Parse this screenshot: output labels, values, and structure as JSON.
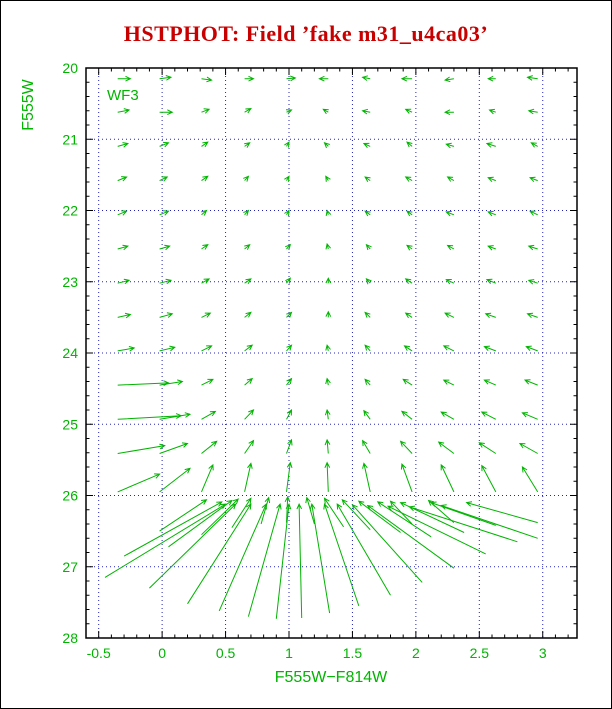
{
  "title": "HSTPHOT: Field ’fake m31_u4ca03’",
  "camera_label": "WF3",
  "colors": {
    "title_red": "#c80000",
    "data_green": "#00b400",
    "grid_blue": "#2222bb",
    "frame_black": "#000000",
    "background": "#ffffff"
  },
  "chart_data": {
    "type": "scatter",
    "style": "vector-field-arrows (photometric bias quiver plot)",
    "title": "HSTPHOT: Field ’fake m31_u4ca03’",
    "xlabel": "F555W−F814W",
    "ylabel": "F555W",
    "xlim": [
      -0.6,
      3.27
    ],
    "ylim": [
      20,
      28
    ],
    "y_axis_direction": "magnitude increases downward",
    "grid": "dotted blue lines at every major tick",
    "legend": "none",
    "xticks": [
      {
        "v": -0.5,
        "label": "-0.5"
      },
      {
        "v": 0,
        "label": "0"
      },
      {
        "v": 0.5,
        "label": "0.5"
      },
      {
        "v": 1,
        "label": "1"
      },
      {
        "v": 1.5,
        "label": "1.5"
      },
      {
        "v": 2,
        "label": "2"
      },
      {
        "v": 2.5,
        "label": "2.5"
      },
      {
        "v": 3,
        "label": "3"
      }
    ],
    "yticks": [
      {
        "v": 20,
        "label": "20"
      },
      {
        "v": 21,
        "label": "21"
      },
      {
        "v": 22,
        "label": "22"
      },
      {
        "v": 23,
        "label": "23"
      },
      {
        "v": 24,
        "label": "24"
      },
      {
        "v": 25,
        "label": "25"
      },
      {
        "v": 26,
        "label": "26"
      },
      {
        "v": 27,
        "label": "27"
      },
      {
        "v": 28,
        "label": "28"
      }
    ],
    "arrows": [
      [
        -0.35,
        20.15,
        -0.25,
        20.15
      ],
      [
        -0.02,
        20.15,
        0.07,
        20.13
      ],
      [
        0.31,
        20.15,
        0.39,
        20.17
      ],
      [
        0.65,
        20.15,
        0.72,
        20.15
      ],
      [
        0.98,
        20.15,
        1.05,
        20.14
      ],
      [
        1.31,
        20.15,
        1.24,
        20.15
      ],
      [
        1.64,
        20.15,
        1.58,
        20.13
      ],
      [
        1.97,
        20.15,
        1.89,
        20.15
      ],
      [
        2.3,
        20.15,
        2.23,
        20.17
      ],
      [
        2.63,
        20.15,
        2.57,
        20.15
      ],
      [
        2.96,
        20.15,
        2.88,
        20.13
      ],
      [
        -0.35,
        20.62,
        -0.26,
        20.59
      ],
      [
        -0.02,
        20.62,
        0.08,
        20.62
      ],
      [
        0.31,
        20.62,
        0.37,
        20.58
      ],
      [
        0.65,
        20.62,
        0.7,
        20.57
      ],
      [
        0.98,
        20.62,
        1.02,
        20.59
      ],
      [
        1.31,
        20.62,
        1.27,
        20.58
      ],
      [
        1.64,
        20.62,
        1.58,
        20.6
      ],
      [
        1.97,
        20.62,
        1.92,
        20.58
      ],
      [
        2.3,
        20.62,
        2.23,
        20.62
      ],
      [
        2.63,
        20.62,
        2.58,
        20.59
      ],
      [
        2.96,
        20.62,
        2.89,
        20.6
      ],
      [
        -0.35,
        21.1,
        -0.27,
        21.06
      ],
      [
        -0.02,
        21.1,
        0.05,
        21.05
      ],
      [
        0.31,
        21.1,
        0.36,
        21.04
      ],
      [
        0.65,
        21.1,
        0.69,
        21.05
      ],
      [
        0.98,
        21.1,
        1.0,
        21.04
      ],
      [
        1.31,
        21.1,
        1.28,
        21.05
      ],
      [
        1.64,
        21.1,
        1.59,
        21.06
      ],
      [
        1.97,
        21.1,
        1.93,
        21.04
      ],
      [
        2.3,
        21.1,
        2.24,
        21.07
      ],
      [
        2.63,
        21.1,
        2.56,
        21.06
      ],
      [
        2.96,
        21.1,
        2.91,
        21.05
      ],
      [
        -0.35,
        21.58,
        -0.28,
        21.53
      ],
      [
        -0.02,
        21.58,
        0.04,
        21.53
      ],
      [
        0.31,
        21.58,
        0.36,
        21.52
      ],
      [
        0.65,
        21.58,
        0.68,
        21.52
      ],
      [
        0.98,
        21.58,
        1.0,
        21.52
      ],
      [
        1.31,
        21.58,
        1.29,
        21.52
      ],
      [
        1.64,
        21.58,
        1.6,
        21.53
      ],
      [
        1.97,
        21.58,
        1.92,
        21.53
      ],
      [
        2.3,
        21.58,
        2.25,
        21.53
      ],
      [
        2.63,
        21.58,
        2.57,
        21.54
      ],
      [
        2.96,
        21.58,
        2.9,
        21.54
      ],
      [
        -0.35,
        22.06,
        -0.28,
        22.01
      ],
      [
        -0.02,
        22.06,
        0.05,
        22.01
      ],
      [
        0.31,
        22.06,
        0.35,
        22.0
      ],
      [
        0.65,
        22.06,
        0.68,
        22.0
      ],
      [
        0.98,
        22.06,
        1.0,
        22.0
      ],
      [
        1.31,
        22.06,
        1.3,
        22.0
      ],
      [
        1.64,
        22.06,
        1.6,
        22.01
      ],
      [
        1.97,
        22.06,
        1.93,
        22.01
      ],
      [
        2.3,
        22.06,
        2.24,
        22.02
      ],
      [
        2.63,
        22.06,
        2.57,
        22.02
      ],
      [
        2.96,
        22.06,
        2.9,
        22.01
      ],
      [
        -0.35,
        22.54,
        -0.27,
        22.5
      ],
      [
        -0.02,
        22.54,
        0.06,
        22.5
      ],
      [
        0.31,
        22.54,
        0.36,
        22.48
      ],
      [
        0.65,
        22.54,
        0.69,
        22.48
      ],
      [
        0.98,
        22.54,
        1.01,
        22.48
      ],
      [
        1.31,
        22.54,
        1.3,
        22.47
      ],
      [
        1.64,
        22.54,
        1.61,
        22.48
      ],
      [
        1.97,
        22.54,
        1.93,
        22.49
      ],
      [
        2.3,
        22.54,
        2.25,
        22.49
      ],
      [
        2.63,
        22.54,
        2.57,
        22.5
      ],
      [
        2.96,
        22.54,
        2.89,
        22.5
      ],
      [
        -0.35,
        23.02,
        -0.26,
        22.98
      ],
      [
        -0.02,
        23.02,
        0.07,
        22.98
      ],
      [
        0.31,
        23.02,
        0.37,
        22.96
      ],
      [
        0.65,
        23.02,
        0.7,
        22.96
      ],
      [
        0.98,
        23.02,
        1.01,
        22.95
      ],
      [
        1.31,
        23.02,
        1.31,
        22.95
      ],
      [
        1.64,
        23.02,
        1.61,
        22.96
      ],
      [
        1.97,
        23.02,
        1.92,
        22.96
      ],
      [
        2.3,
        23.02,
        2.24,
        22.97
      ],
      [
        2.63,
        23.02,
        2.56,
        22.97
      ],
      [
        2.96,
        23.02,
        2.89,
        22.98
      ],
      [
        -0.35,
        23.5,
        -0.25,
        23.46
      ],
      [
        -0.02,
        23.5,
        0.08,
        23.45
      ],
      [
        0.31,
        23.5,
        0.38,
        23.44
      ],
      [
        0.65,
        23.5,
        0.7,
        23.43
      ],
      [
        0.98,
        23.5,
        1.02,
        23.43
      ],
      [
        1.31,
        23.5,
        1.31,
        23.42
      ],
      [
        1.64,
        23.5,
        1.6,
        23.43
      ],
      [
        1.97,
        23.5,
        1.92,
        23.44
      ],
      [
        2.3,
        23.5,
        2.23,
        23.44
      ],
      [
        2.63,
        23.5,
        2.55,
        23.45
      ],
      [
        2.96,
        23.5,
        2.88,
        23.45
      ],
      [
        -0.35,
        23.97,
        -0.22,
        23.93
      ],
      [
        -0.02,
        23.97,
        0.1,
        23.92
      ],
      [
        0.31,
        23.97,
        0.39,
        23.9
      ],
      [
        0.65,
        23.97,
        0.71,
        23.89
      ],
      [
        0.98,
        23.97,
        1.02,
        23.89
      ],
      [
        1.31,
        23.97,
        1.3,
        23.89
      ],
      [
        1.64,
        23.97,
        1.6,
        23.89
      ],
      [
        1.97,
        23.97,
        1.91,
        23.9
      ],
      [
        2.3,
        23.97,
        2.22,
        23.9
      ],
      [
        2.63,
        23.97,
        2.54,
        23.91
      ],
      [
        2.96,
        23.97,
        2.87,
        23.91
      ],
      [
        -0.35,
        24.45,
        0.05,
        24.42
      ],
      [
        -0.02,
        24.45,
        0.16,
        24.4
      ],
      [
        0.31,
        24.45,
        0.4,
        24.37
      ],
      [
        0.65,
        24.45,
        0.71,
        24.36
      ],
      [
        0.98,
        24.45,
        1.02,
        24.36
      ],
      [
        1.31,
        24.45,
        1.3,
        24.36
      ],
      [
        1.64,
        24.45,
        1.6,
        24.37
      ],
      [
        1.97,
        24.45,
        1.9,
        24.37
      ],
      [
        2.3,
        24.45,
        2.22,
        24.38
      ],
      [
        2.63,
        24.45,
        2.54,
        24.38
      ],
      [
        2.96,
        24.45,
        2.86,
        24.38
      ],
      [
        -0.35,
        24.93,
        0.15,
        24.88
      ],
      [
        -0.02,
        24.93,
        0.22,
        24.86
      ],
      [
        0.31,
        24.93,
        0.42,
        24.82
      ],
      [
        0.65,
        24.93,
        0.72,
        24.8
      ],
      [
        0.98,
        24.93,
        1.02,
        24.8
      ],
      [
        1.31,
        24.93,
        1.3,
        24.8
      ],
      [
        1.64,
        24.93,
        1.59,
        24.81
      ],
      [
        1.97,
        24.93,
        1.89,
        24.82
      ],
      [
        2.3,
        24.93,
        2.2,
        24.83
      ],
      [
        2.63,
        24.93,
        2.52,
        24.83
      ],
      [
        2.96,
        24.93,
        2.84,
        24.84
      ],
      [
        -0.35,
        25.41,
        0.02,
        25.3
      ],
      [
        -0.02,
        25.41,
        0.2,
        25.27
      ],
      [
        0.31,
        25.41,
        0.43,
        25.24
      ],
      [
        0.65,
        25.41,
        0.72,
        25.23
      ],
      [
        0.98,
        25.41,
        1.02,
        25.22
      ],
      [
        1.31,
        25.41,
        1.3,
        25.22
      ],
      [
        1.64,
        25.41,
        1.58,
        25.23
      ],
      [
        1.97,
        25.41,
        1.88,
        25.24
      ],
      [
        2.3,
        25.41,
        2.18,
        25.25
      ],
      [
        2.63,
        25.41,
        2.5,
        25.26
      ],
      [
        2.96,
        25.41,
        2.82,
        25.27
      ],
      [
        -0.35,
        25.95,
        -0.02,
        25.7
      ],
      [
        -0.02,
        25.95,
        0.22,
        25.62
      ],
      [
        0.31,
        25.95,
        0.4,
        25.57
      ],
      [
        0.65,
        25.95,
        0.7,
        25.55
      ],
      [
        0.98,
        25.95,
        1.01,
        25.54
      ],
      [
        1.31,
        25.95,
        1.3,
        25.54
      ],
      [
        1.64,
        25.95,
        1.59,
        25.55
      ],
      [
        1.97,
        25.95,
        1.89,
        25.56
      ],
      [
        2.3,
        25.95,
        2.2,
        25.57
      ],
      [
        2.63,
        25.95,
        2.52,
        25.58
      ],
      [
        2.96,
        25.95,
        2.84,
        25.6
      ],
      [
        -0.45,
        27.15,
        0.5,
        26.12
      ],
      [
        -0.3,
        26.85,
        0.47,
        26.09
      ],
      [
        -0.1,
        27.3,
        0.58,
        26.12
      ],
      [
        -0.02,
        26.5,
        0.35,
        26.06
      ],
      [
        0.05,
        26.72,
        0.55,
        26.07
      ],
      [
        0.2,
        27.52,
        0.7,
        26.12
      ],
      [
        0.31,
        26.55,
        0.6,
        26.05
      ],
      [
        0.45,
        27.62,
        0.82,
        26.12
      ],
      [
        0.55,
        26.45,
        0.7,
        26.04
      ],
      [
        0.68,
        27.7,
        0.93,
        26.12
      ],
      [
        0.78,
        26.4,
        0.84,
        26.03
      ],
      [
        0.9,
        27.73,
        1.0,
        26.12
      ],
      [
        0.98,
        26.38,
        0.99,
        26.02
      ],
      [
        1.1,
        27.72,
        1.08,
        26.12
      ],
      [
        1.2,
        26.4,
        1.14,
        26.03
      ],
      [
        1.32,
        27.65,
        1.18,
        26.12
      ],
      [
        1.43,
        26.44,
        1.28,
        26.04
      ],
      [
        1.55,
        27.55,
        1.28,
        26.12
      ],
      [
        1.64,
        26.48,
        1.42,
        26.06
      ],
      [
        1.8,
        27.4,
        1.38,
        26.12
      ],
      [
        1.88,
        26.52,
        1.55,
        26.08
      ],
      [
        2.05,
        27.22,
        1.5,
        26.13
      ],
      [
        2.12,
        26.58,
        1.7,
        26.09
      ],
      [
        2.3,
        27.02,
        1.62,
        26.14
      ],
      [
        2.38,
        26.52,
        1.88,
        26.1
      ],
      [
        2.55,
        26.82,
        1.78,
        26.15
      ],
      [
        2.63,
        26.42,
        2.12,
        26.1
      ],
      [
        2.8,
        26.65,
        1.95,
        26.16
      ],
      [
        2.96,
        26.38,
        2.4,
        26.1
      ],
      [
        1.97,
        26.4,
        1.8,
        26.08
      ],
      [
        2.3,
        26.38,
        2.1,
        26.07
      ],
      [
        2.96,
        26.6,
        2.2,
        26.14
      ]
    ]
  }
}
